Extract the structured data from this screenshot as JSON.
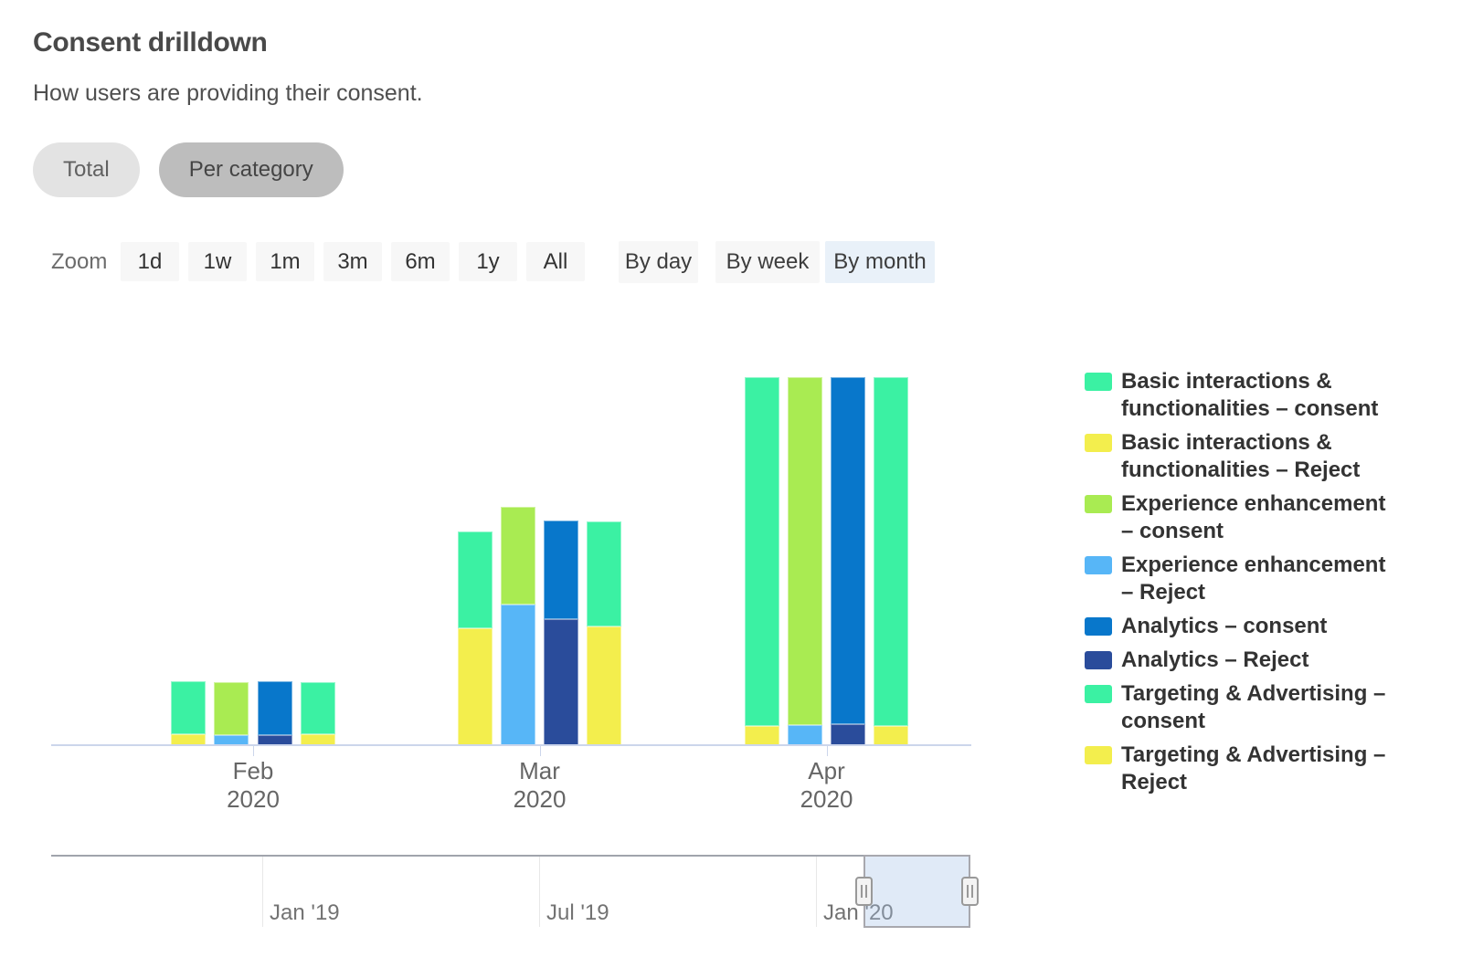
{
  "header": {
    "title": "Consent drilldown",
    "subtitle": "How users are providing their consent."
  },
  "view_toggle": {
    "options": [
      {
        "label": "Total",
        "selected": false
      },
      {
        "label": "Per category",
        "selected": true
      }
    ]
  },
  "toolbar": {
    "zoom_label": "Zoom",
    "zoom_ranges": [
      "1d",
      "1w",
      "1m",
      "3m",
      "6m",
      "1y",
      "All"
    ],
    "group_by": [
      {
        "label": "By day",
        "selected": false
      },
      {
        "label": "By week",
        "selected": false
      },
      {
        "label": "By month",
        "selected": true
      }
    ],
    "menu_icon": "hamburger-menu-icon"
  },
  "chart_data": {
    "type": "bar",
    "subtype": "grouped stacked columns: 4 stacks per month, each stack = Reject (bottom) + consent (top) for one cookie category",
    "categories": [
      "Feb 2020",
      "Mar 2020",
      "Apr 2020"
    ],
    "y_axis": {
      "visible": false,
      "note": "no y-axis ticks or labels shown; values below are relative estimates read from bar pixel heights"
    },
    "grid": false,
    "legend_position": "right",
    "series": [
      {
        "name": "Basic interactions & functionalities – consent",
        "color": "#3BF1A3",
        "stack": "basic",
        "role": "consent",
        "values": [
          58,
          106,
          382
        ]
      },
      {
        "name": "Basic interactions & functionalities – Reject",
        "color": "#F3EE4D",
        "stack": "basic",
        "role": "reject",
        "values": [
          12,
          128,
          21
        ]
      },
      {
        "name": "Experience enhancement – consent",
        "color": "#A9EB52",
        "stack": "experience",
        "role": "consent",
        "values": [
          58,
          107,
          381
        ]
      },
      {
        "name": "Experience enhancement – Reject",
        "color": "#57B6F7",
        "stack": "experience",
        "role": "reject",
        "values": [
          11,
          154,
          22
        ]
      },
      {
        "name": "Analytics – consent",
        "color": "#0877CB",
        "stack": "analytics",
        "role": "consent",
        "values": [
          59,
          108,
          380
        ]
      },
      {
        "name": "Analytics – Reject",
        "color": "#2A4C9B",
        "stack": "analytics",
        "role": "reject",
        "values": [
          11,
          138,
          23
        ]
      },
      {
        "name": "Targeting & Advertising – consent",
        "color": "#3BF1A3",
        "stack": "targeting",
        "role": "consent",
        "values": [
          57,
          115,
          382
        ]
      },
      {
        "name": "Targeting & Advertising – Reject",
        "color": "#F3EE4D",
        "stack": "targeting",
        "role": "reject",
        "values": [
          12,
          130,
          21
        ]
      }
    ]
  },
  "navigator": {
    "labels": [
      "Jan '19",
      "Jul '19",
      "Jan '20"
    ],
    "selection": "right end of range (around Jan '20 onward)"
  },
  "colors": {
    "axis_line": "#CCD6EB",
    "button_bg": "#F7F7F7",
    "groupby_selected_bg": "#E9F1F9",
    "pill_bg": "#E3E3E3",
    "pill_selected_bg": "#BDBDBD",
    "navigator_selection_fill": "rgba(160,190,230,0.33)"
  }
}
